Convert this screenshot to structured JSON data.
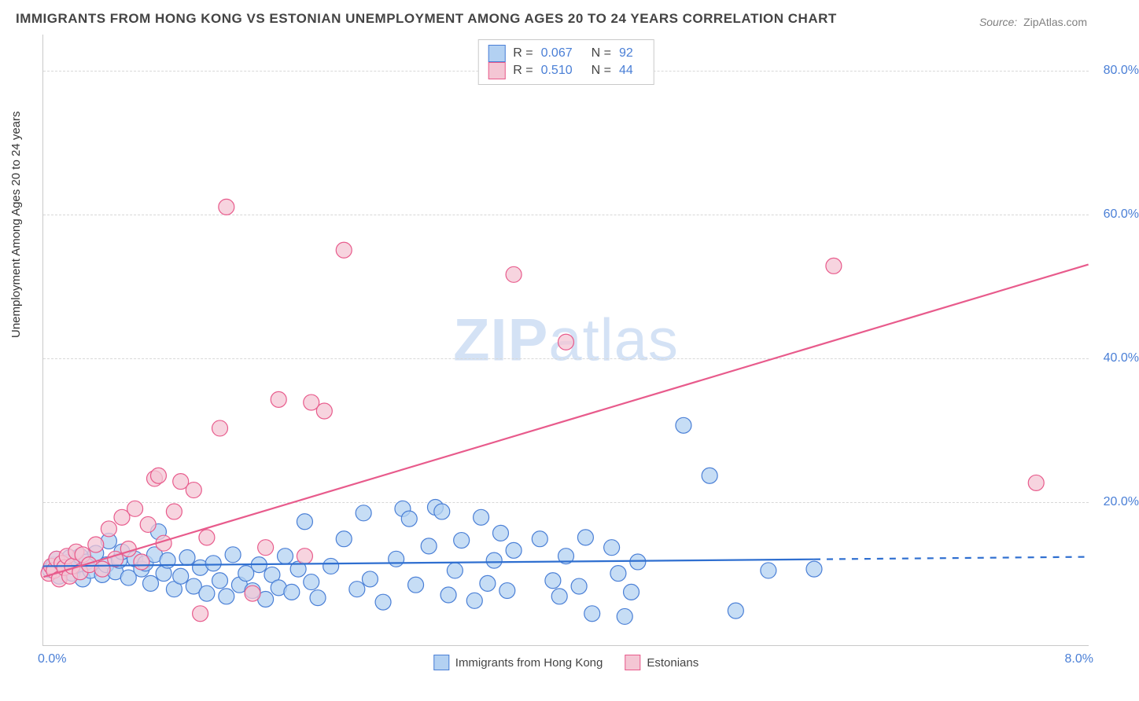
{
  "title": "IMMIGRANTS FROM HONG KONG VS ESTONIAN UNEMPLOYMENT AMONG AGES 20 TO 24 YEARS CORRELATION CHART",
  "source_label": "Source:",
  "source_value": "ZipAtlas.com",
  "watermark_a": "ZIP",
  "watermark_b": "atlas",
  "chart": {
    "type": "scatter",
    "background_color": "#ffffff",
    "grid_color": "#d8d8d8",
    "axis_color": "#c9c9c9",
    "tick_color": "#4a7fd6",
    "tick_fontsize": 16,
    "xlim": [
      0,
      8
    ],
    "ylim": [
      0,
      85
    ],
    "x_unit": "%",
    "y_unit": "%",
    "xticks": [
      {
        "value": 0,
        "label": "0.0%"
      },
      {
        "value": 8,
        "label": "8.0%"
      }
    ],
    "yticks": [
      {
        "value": 20,
        "label": "20.0%"
      },
      {
        "value": 40,
        "label": "40.0%"
      },
      {
        "value": 60,
        "label": "60.0%"
      },
      {
        "value": 80,
        "label": "80.0%"
      }
    ],
    "ylabel": "Unemployment Among Ages 20 to 24 years",
    "ylabel_fontsize": 15,
    "marker_radius": 10,
    "marker_stroke_width": 1.2,
    "line_width": 2.2,
    "series": [
      {
        "name": "Immigrants from Hong Kong",
        "R": "0.067",
        "N": "92",
        "fill_color": "#b3d1f2",
        "stroke_color": "#4a7fd6",
        "line_color": "#2f6fd0",
        "trend": {
          "y_at_xmin": 11.0,
          "y_at_xmax": 12.3,
          "solid_until_x": 5.9
        },
        "points": [
          [
            0.05,
            10.5
          ],
          [
            0.08,
            11.2
          ],
          [
            0.1,
            12.0
          ],
          [
            0.12,
            9.6
          ],
          [
            0.15,
            10.8
          ],
          [
            0.18,
            11.5
          ],
          [
            0.2,
            12.2
          ],
          [
            0.22,
            10.0
          ],
          [
            0.25,
            11.0
          ],
          [
            0.28,
            12.4
          ],
          [
            0.3,
            9.2
          ],
          [
            0.33,
            11.6
          ],
          [
            0.36,
            10.4
          ],
          [
            0.4,
            12.8
          ],
          [
            0.45,
            9.8
          ],
          [
            0.48,
            11.2
          ],
          [
            0.5,
            14.5
          ],
          [
            0.55,
            10.2
          ],
          [
            0.58,
            11.8
          ],
          [
            0.6,
            13.0
          ],
          [
            0.65,
            9.4
          ],
          [
            0.7,
            12.0
          ],
          [
            0.75,
            10.6
          ],
          [
            0.78,
            11.4
          ],
          [
            0.82,
            8.6
          ],
          [
            0.85,
            12.6
          ],
          [
            0.88,
            15.8
          ],
          [
            0.92,
            10.0
          ],
          [
            0.95,
            11.8
          ],
          [
            1.0,
            7.8
          ],
          [
            1.05,
            9.6
          ],
          [
            1.1,
            12.2
          ],
          [
            1.15,
            8.2
          ],
          [
            1.2,
            10.8
          ],
          [
            1.25,
            7.2
          ],
          [
            1.3,
            11.4
          ],
          [
            1.35,
            9.0
          ],
          [
            1.4,
            6.8
          ],
          [
            1.45,
            12.6
          ],
          [
            1.5,
            8.4
          ],
          [
            1.55,
            10.0
          ],
          [
            1.6,
            7.6
          ],
          [
            1.65,
            11.2
          ],
          [
            1.7,
            6.4
          ],
          [
            1.75,
            9.8
          ],
          [
            1.8,
            8.0
          ],
          [
            1.85,
            12.4
          ],
          [
            1.9,
            7.4
          ],
          [
            1.95,
            10.6
          ],
          [
            2.0,
            17.2
          ],
          [
            2.05,
            8.8
          ],
          [
            2.1,
            6.6
          ],
          [
            2.2,
            11.0
          ],
          [
            2.3,
            14.8
          ],
          [
            2.4,
            7.8
          ],
          [
            2.45,
            18.4
          ],
          [
            2.5,
            9.2
          ],
          [
            2.6,
            6.0
          ],
          [
            2.7,
            12.0
          ],
          [
            2.75,
            19.0
          ],
          [
            2.8,
            17.6
          ],
          [
            2.85,
            8.4
          ],
          [
            2.95,
            13.8
          ],
          [
            3.0,
            19.2
          ],
          [
            3.05,
            18.6
          ],
          [
            3.1,
            7.0
          ],
          [
            3.15,
            10.4
          ],
          [
            3.2,
            14.6
          ],
          [
            3.3,
            6.2
          ],
          [
            3.35,
            17.8
          ],
          [
            3.4,
            8.6
          ],
          [
            3.45,
            11.8
          ],
          [
            3.5,
            15.6
          ],
          [
            3.55,
            7.6
          ],
          [
            3.6,
            13.2
          ],
          [
            3.8,
            14.8
          ],
          [
            3.9,
            9.0
          ],
          [
            3.95,
            6.8
          ],
          [
            4.0,
            12.4
          ],
          [
            4.1,
            8.2
          ],
          [
            4.15,
            15.0
          ],
          [
            4.2,
            4.4
          ],
          [
            4.35,
            13.6
          ],
          [
            4.4,
            10.0
          ],
          [
            4.45,
            4.0
          ],
          [
            4.5,
            7.4
          ],
          [
            4.55,
            11.6
          ],
          [
            4.9,
            30.6
          ],
          [
            5.1,
            23.6
          ],
          [
            5.3,
            4.8
          ],
          [
            5.55,
            10.4
          ],
          [
            5.9,
            10.6
          ]
        ]
      },
      {
        "name": "Estonians",
        "R": "0.510",
        "N": "44",
        "fill_color": "#f4c6d4",
        "stroke_color": "#e85b8c",
        "line_color": "#e85b8c",
        "trend": {
          "y_at_xmin": 9.5,
          "y_at_xmax": 53.0,
          "solid_until_x": 8.0
        },
        "points": [
          [
            0.04,
            10.0
          ],
          [
            0.06,
            11.0
          ],
          [
            0.08,
            10.4
          ],
          [
            0.1,
            12.0
          ],
          [
            0.12,
            9.2
          ],
          [
            0.14,
            11.4
          ],
          [
            0.16,
            10.8
          ],
          [
            0.18,
            12.4
          ],
          [
            0.2,
            9.6
          ],
          [
            0.22,
            11.0
          ],
          [
            0.25,
            13.0
          ],
          [
            0.28,
            10.2
          ],
          [
            0.3,
            12.6
          ],
          [
            0.35,
            11.2
          ],
          [
            0.4,
            14.0
          ],
          [
            0.45,
            10.6
          ],
          [
            0.5,
            16.2
          ],
          [
            0.55,
            12.0
          ],
          [
            0.6,
            17.8
          ],
          [
            0.65,
            13.4
          ],
          [
            0.7,
            19.0
          ],
          [
            0.75,
            11.6
          ],
          [
            0.8,
            16.8
          ],
          [
            0.85,
            23.2
          ],
          [
            0.88,
            23.6
          ],
          [
            0.92,
            14.2
          ],
          [
            1.0,
            18.6
          ],
          [
            1.05,
            22.8
          ],
          [
            1.15,
            21.6
          ],
          [
            1.2,
            4.4
          ],
          [
            1.25,
            15.0
          ],
          [
            1.35,
            30.2
          ],
          [
            1.4,
            61.0
          ],
          [
            1.6,
            7.2
          ],
          [
            1.7,
            13.6
          ],
          [
            1.8,
            34.2
          ],
          [
            2.0,
            12.4
          ],
          [
            2.05,
            33.8
          ],
          [
            2.15,
            32.6
          ],
          [
            2.3,
            55.0
          ],
          [
            3.6,
            51.6
          ],
          [
            4.0,
            42.2
          ],
          [
            6.05,
            52.8
          ],
          [
            7.6,
            22.6
          ]
        ]
      }
    ],
    "legend_bottom": [
      {
        "label": "Immigrants from Hong Kong",
        "fill": "#b3d1f2",
        "stroke": "#4a7fd6"
      },
      {
        "label": "Estonians",
        "fill": "#f4c6d4",
        "stroke": "#e85b8c"
      }
    ]
  }
}
